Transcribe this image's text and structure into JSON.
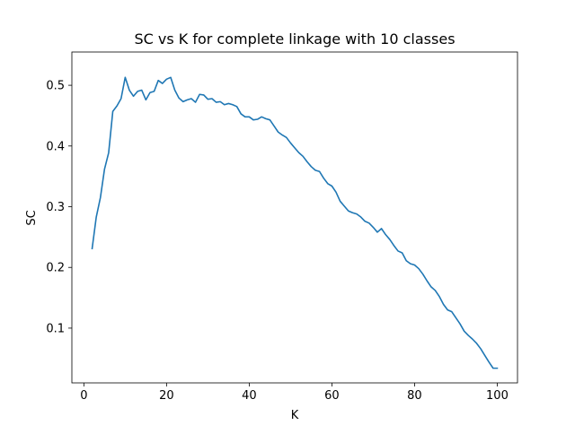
{
  "chart_data": {
    "type": "line",
    "title": "SC vs K for complete linkage with 10 classes",
    "xlabel": "K",
    "ylabel": "SC",
    "xlim": [
      -2.9,
      104.9
    ],
    "ylim": [
      0.0098,
      0.5548
    ],
    "xticks": [
      0,
      20,
      40,
      60,
      80,
      100
    ],
    "yticks": [
      0.1,
      0.2,
      0.3,
      0.4,
      0.5
    ],
    "grid": false,
    "legend": "none",
    "series": [
      {
        "color": "#1f77b4",
        "x": [
          2,
          3,
          4,
          5,
          6,
          7,
          8,
          9,
          10,
          11,
          12,
          13,
          14,
          15,
          16,
          17,
          18,
          19,
          20,
          21,
          22,
          23,
          24,
          25,
          26,
          27,
          28,
          29,
          30,
          31,
          32,
          33,
          34,
          35,
          36,
          37,
          38,
          39,
          40,
          41,
          42,
          43,
          44,
          45,
          46,
          47,
          48,
          49,
          50,
          51,
          52,
          53,
          54,
          55,
          56,
          57,
          58,
          59,
          60,
          61,
          62,
          63,
          64,
          65,
          66,
          67,
          68,
          69,
          70,
          71,
          72,
          73,
          74,
          75,
          76,
          77,
          78,
          79,
          80,
          81,
          82,
          83,
          84,
          85,
          86,
          87,
          88,
          89,
          90,
          91,
          92,
          93,
          94,
          95,
          96,
          97,
          98,
          99,
          100
        ],
        "values": [
          0.231,
          0.283,
          0.315,
          0.362,
          0.389,
          0.457,
          0.466,
          0.478,
          0.513,
          0.492,
          0.482,
          0.49,
          0.492,
          0.476,
          0.488,
          0.49,
          0.508,
          0.503,
          0.51,
          0.513,
          0.492,
          0.479,
          0.473,
          0.476,
          0.478,
          0.472,
          0.485,
          0.484,
          0.477,
          0.478,
          0.472,
          0.473,
          0.468,
          0.47,
          0.468,
          0.465,
          0.453,
          0.448,
          0.448,
          0.443,
          0.444,
          0.448,
          0.445,
          0.443,
          0.433,
          0.423,
          0.418,
          0.414,
          0.405,
          0.397,
          0.389,
          0.383,
          0.374,
          0.366,
          0.36,
          0.358,
          0.347,
          0.338,
          0.334,
          0.324,
          0.309,
          0.301,
          0.293,
          0.29,
          0.288,
          0.283,
          0.276,
          0.273,
          0.266,
          0.258,
          0.264,
          0.254,
          0.246,
          0.236,
          0.227,
          0.224,
          0.211,
          0.206,
          0.204,
          0.198,
          0.189,
          0.178,
          0.168,
          0.162,
          0.152,
          0.139,
          0.13,
          0.127,
          0.117,
          0.107,
          0.095,
          0.088,
          0.082,
          0.075,
          0.066,
          0.055,
          0.044,
          0.034,
          0.034
        ]
      }
    ]
  }
}
